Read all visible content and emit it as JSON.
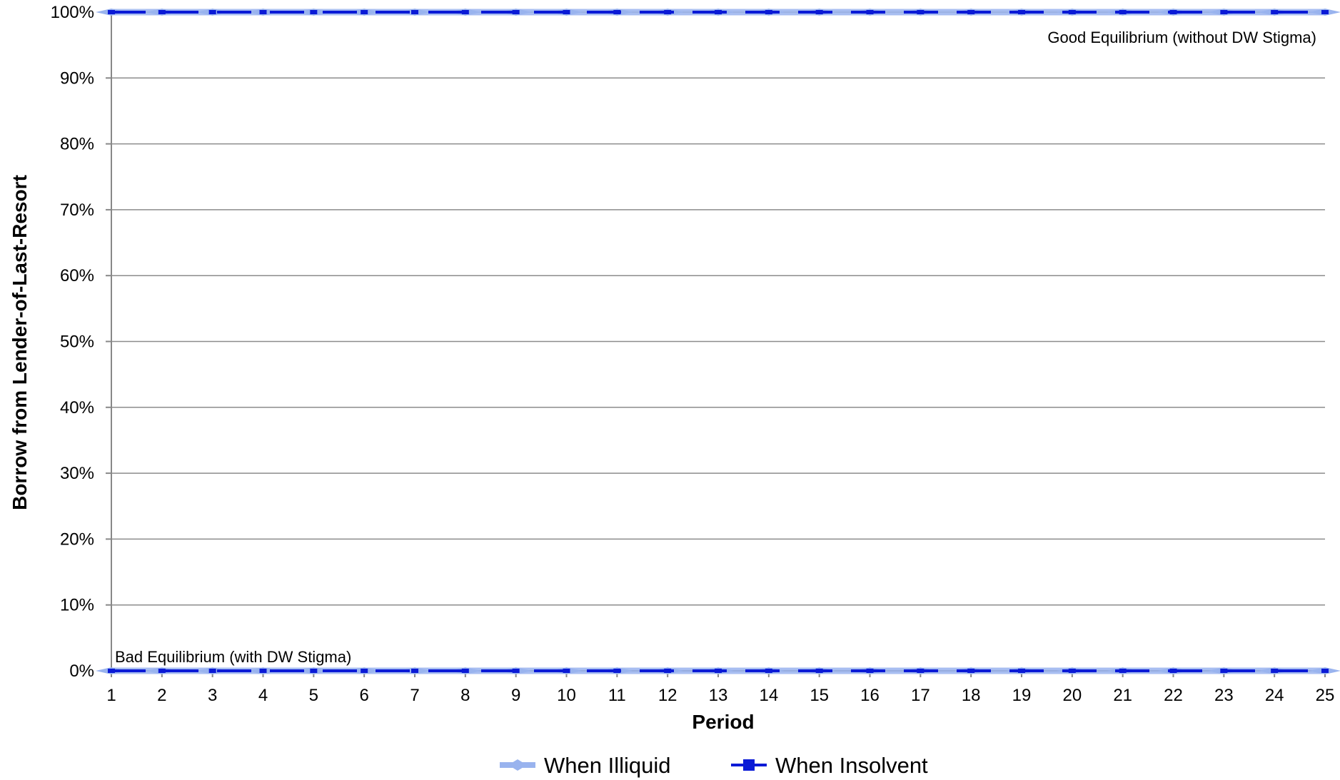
{
  "chart_data": {
    "type": "line",
    "xlabel": "Period",
    "ylabel": "Borrow from Lender-of-Last-Resort",
    "x": [
      1,
      2,
      3,
      4,
      5,
      6,
      7,
      8,
      9,
      10,
      11,
      12,
      13,
      14,
      15,
      16,
      17,
      18,
      19,
      20,
      21,
      22,
      23,
      24,
      25
    ],
    "xlim": [
      1,
      25
    ],
    "ylim": [
      0,
      1
    ],
    "y_tick_labels": [
      "0%",
      "10%",
      "20%",
      "30%",
      "40%",
      "50%",
      "60%",
      "70%",
      "80%",
      "90%",
      "100%"
    ],
    "grid": true,
    "legend_position": "bottom",
    "annotations": {
      "good": "Good Equilibrium (without DW Stigma)",
      "bad": "Bad Equilibrium (with DW Stigma)"
    },
    "series": [
      {
        "name": "When Illiquid",
        "color": "#99b3ee",
        "marker": "diamond",
        "equilibria": [
          {
            "label": "good",
            "values": [
              1,
              1,
              1,
              1,
              1,
              1,
              1,
              1,
              1,
              1,
              1,
              1,
              1,
              1,
              1,
              1,
              1,
              1,
              1,
              1,
              1,
              1,
              1,
              1,
              1
            ]
          },
          {
            "label": "bad",
            "values": [
              0,
              0,
              0,
              0,
              0,
              0,
              0,
              0,
              0,
              0,
              0,
              0,
              0,
              0,
              0,
              0,
              0,
              0,
              0,
              0,
              0,
              0,
              0,
              0,
              0
            ]
          }
        ]
      },
      {
        "name": "When Insolvent",
        "color": "#0a1ad6",
        "marker": "square",
        "equilibria": [
          {
            "label": "good",
            "values": [
              1,
              1,
              1,
              1,
              1,
              1,
              1,
              1,
              1,
              1,
              1,
              1,
              1,
              1,
              1,
              1,
              1,
              1,
              1,
              1,
              1,
              1,
              1,
              1,
              1
            ]
          },
          {
            "label": "bad",
            "values": [
              0,
              0,
              0,
              0,
              0,
              0,
              0,
              0,
              0,
              0,
              0,
              0,
              0,
              0,
              0,
              0,
              0,
              0,
              0,
              0,
              0,
              0,
              0,
              0,
              0
            ]
          }
        ]
      }
    ]
  }
}
